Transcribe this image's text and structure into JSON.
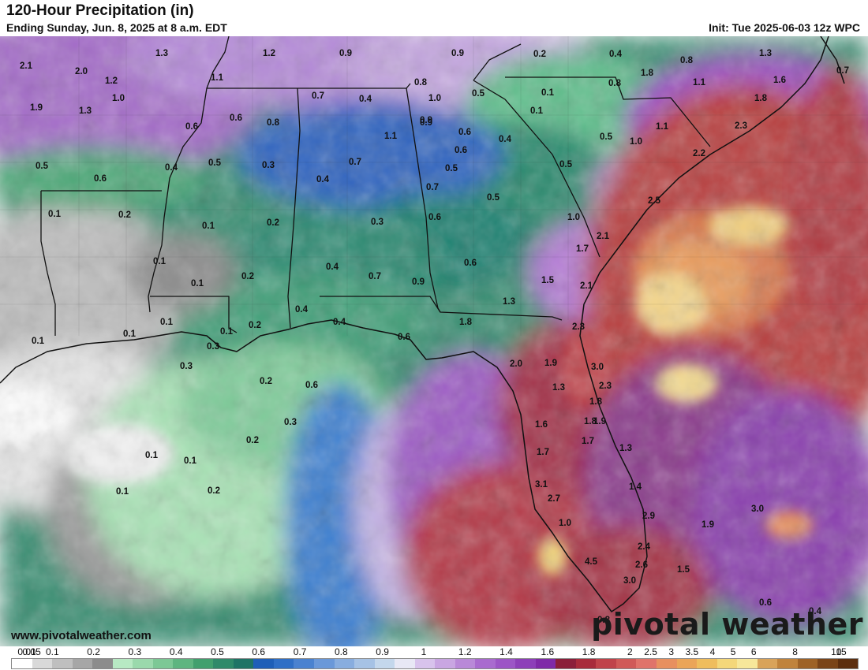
{
  "header": {
    "title": "120-Hour Precipitation (in)",
    "subtitle": "Ending Sunday, Jun. 8, 2025 at 8 a.m. EDT",
    "init": "Init: Tue 2025-06-03 12z WPC"
  },
  "footer": {
    "website": "www.pivotalweather.com",
    "brand": "pivotal weather"
  },
  "legend": {
    "labels": [
      "0.01",
      "0.05",
      "0.1",
      "0.2",
      "0.3",
      "0.4",
      "0.5",
      "0.6",
      "0.7",
      "0.8",
      "0.9",
      "1",
      "1.2",
      "1.4",
      "1.6",
      "1.8",
      "2",
      "2.5",
      "3",
      "3.5",
      "4",
      "5",
      "6",
      "8",
      "10",
      "15"
    ],
    "colors": [
      "#ffffff",
      "#d9d9d9",
      "#bfbfbf",
      "#a6a6a6",
      "#8c8c8c",
      "#b7e9c3",
      "#9ad9ac",
      "#7cc895",
      "#5eb580",
      "#41a06e",
      "#2f8a6a",
      "#1f7466",
      "#1e5fb8",
      "#2f6fc6",
      "#4a82d0",
      "#6a98d9",
      "#88addf",
      "#a6c2e5",
      "#c4d7ec",
      "#e8e8f5",
      "#d8c3ec",
      "#c9a6e2",
      "#b989d8",
      "#a96bcf",
      "#9c55c6",
      "#8d3fb9",
      "#7f2aa8",
      "#8b1f3a",
      "#a82b3b",
      "#c0434a",
      "#d05a58",
      "#e0736a",
      "#e8905f",
      "#eba558",
      "#efbd5d",
      "#f4d77a",
      "#f7e79a",
      "#d9a35a",
      "#c0833c",
      "#9e6226",
      "#7a4418",
      "#5c2e0e"
    ]
  },
  "map_labels": [
    {
      "t": "2.1"
    },
    {
      "t": "2.0"
    },
    {
      "t": "1.3"
    },
    {
      "t": "1.2"
    },
    {
      "t": "0.9"
    },
    {
      "t": "0.9"
    },
    {
      "t": "0.2"
    },
    {
      "t": "0.4"
    },
    {
      "t": "0.8"
    },
    {
      "t": "1.3"
    },
    {
      "t": "1.2"
    },
    {
      "t": "1.1"
    },
    {
      "t": "0.8"
    },
    {
      "t": "0.7"
    },
    {
      "t": "0.4"
    },
    {
      "t": "1.1"
    },
    {
      "t": "1.6"
    },
    {
      "t": "1.8"
    },
    {
      "t": "1.9"
    },
    {
      "t": "1.0"
    },
    {
      "t": "0.7"
    },
    {
      "t": "0.9"
    },
    {
      "t": "1.0"
    },
    {
      "t": "0.5"
    },
    {
      "t": "0.1"
    },
    {
      "t": "1.8"
    },
    {
      "t": "1.3"
    },
    {
      "t": "0.1"
    },
    {
      "t": "0.6"
    },
    {
      "t": "0.8"
    },
    {
      "t": "0.6"
    },
    {
      "t": "0.9"
    },
    {
      "t": "0.8"
    },
    {
      "t": "1.1"
    },
    {
      "t": "1.1"
    },
    {
      "t": "2.3"
    },
    {
      "t": "0.5"
    },
    {
      "t": "1.0"
    },
    {
      "t": "0.6"
    },
    {
      "t": "0.4"
    },
    {
      "t": "0.6"
    },
    {
      "t": "2.2"
    },
    {
      "t": "0.5"
    },
    {
      "t": "0.4"
    },
    {
      "t": "0.3"
    },
    {
      "t": "0.5"
    },
    {
      "t": "0.5"
    },
    {
      "t": "0.7"
    },
    {
      "t": "0.5"
    },
    {
      "t": "0.7"
    },
    {
      "t": "0.4"
    },
    {
      "t": "2.5"
    },
    {
      "t": "0.1"
    },
    {
      "t": "0.2"
    },
    {
      "t": "0.5"
    },
    {
      "t": "0.6"
    },
    {
      "t": "1.0"
    },
    {
      "t": "0.1"
    },
    {
      "t": "0.2"
    },
    {
      "t": "0.3"
    },
    {
      "t": "2.1"
    },
    {
      "t": "0.6"
    },
    {
      "t": "0.1"
    },
    {
      "t": "0.6"
    },
    {
      "t": "1.7"
    },
    {
      "t": "0.4"
    },
    {
      "t": "0.2"
    },
    {
      "t": "0.7"
    },
    {
      "t": "0.9"
    },
    {
      "t": "1.5"
    },
    {
      "t": "0.1"
    },
    {
      "t": "2.1"
    },
    {
      "t": "1.3"
    },
    {
      "t": "0.4"
    },
    {
      "t": "0.4"
    },
    {
      "t": "1.8"
    },
    {
      "t": "0.1"
    },
    {
      "t": "0.2"
    },
    {
      "t": "2.3"
    },
    {
      "t": "0.1"
    },
    {
      "t": "0.1"
    },
    {
      "t": "0.6"
    },
    {
      "t": "0.3"
    },
    {
      "t": "0.1"
    },
    {
      "t": "2.0"
    },
    {
      "t": "1.9"
    },
    {
      "t": "0.3"
    },
    {
      "t": "3.0"
    },
    {
      "t": "0.2"
    },
    {
      "t": "0.6"
    },
    {
      "t": "2.3"
    },
    {
      "t": "1.3"
    },
    {
      "t": "1.8"
    },
    {
      "t": "0.3"
    },
    {
      "t": "1.6"
    },
    {
      "t": "1.8"
    },
    {
      "t": "1.9"
    },
    {
      "t": "0.2"
    },
    {
      "t": "1.7"
    },
    {
      "t": "1.3"
    },
    {
      "t": "0.1"
    },
    {
      "t": "1.7"
    },
    {
      "t": "0.1"
    },
    {
      "t": "3.1"
    },
    {
      "t": "1.4"
    },
    {
      "t": "0.1"
    },
    {
      "t": "0.2"
    },
    {
      "t": "2.7"
    },
    {
      "t": "1.0"
    },
    {
      "t": "2.9"
    },
    {
      "t": "3.0"
    },
    {
      "t": "1.9"
    },
    {
      "t": "2.4"
    },
    {
      "t": "4.5"
    },
    {
      "t": "2.6"
    },
    {
      "t": "1.5"
    },
    {
      "t": "3.0"
    },
    {
      "t": "0.6"
    },
    {
      "t": "0.4"
    },
    {
      "t": "0.8"
    }
  ]
}
